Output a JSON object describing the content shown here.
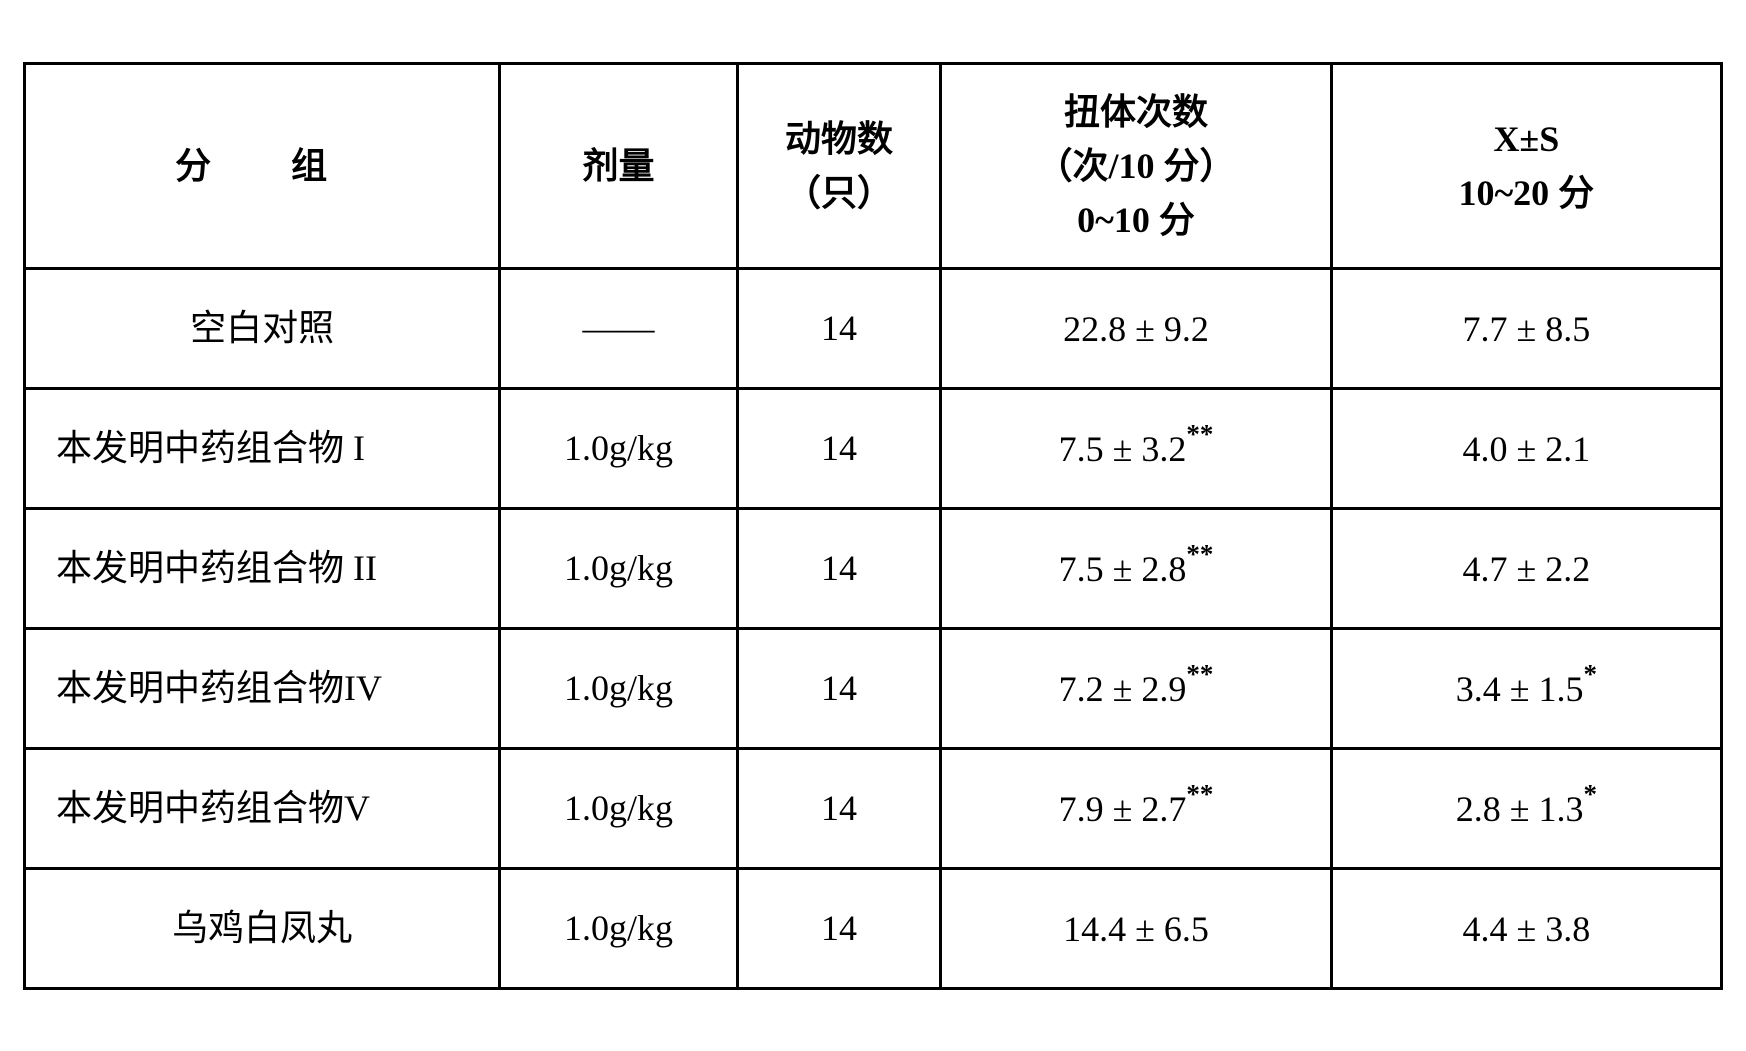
{
  "table": {
    "type": "table",
    "border_color": "#000000",
    "background_color": "#ffffff",
    "text_color": "#000000",
    "header_fontsize": 36,
    "cell_fontsize": 36,
    "header_fontweight": "bold",
    "columns": [
      {
        "key": "group",
        "label": "分　组",
        "width": "28%",
        "align": "center"
      },
      {
        "key": "dose",
        "label": "剂量",
        "width": "14%",
        "align": "center"
      },
      {
        "key": "animals",
        "label_line1": "动物数",
        "label_line2": "（只）",
        "width": "12%",
        "align": "center"
      },
      {
        "key": "twist1",
        "label_line1": "扭体次数",
        "label_line2": "（次/10 分）",
        "label_line3": "0~10 分",
        "width": "23%",
        "align": "center"
      },
      {
        "key": "twist2",
        "label_line1": "X±S",
        "label_line2": "10~20 分",
        "width": "23%",
        "align": "center"
      }
    ],
    "rows": [
      {
        "group": "空白对照",
        "group_align": "center",
        "dose": "——",
        "animals": "14",
        "twist1": "22.8 ± 9.2",
        "twist1_sup": "",
        "twist2": "7.7 ± 8.5",
        "twist2_sup": ""
      },
      {
        "group": "本发明中药组合物 I",
        "group_align": "left",
        "dose": "1.0g/kg",
        "animals": "14",
        "twist1": "7.5 ± 3.2",
        "twist1_sup": "**",
        "twist2": "4.0 ± 2.1",
        "twist2_sup": ""
      },
      {
        "group": "本发明中药组合物 II",
        "group_align": "left",
        "dose": "1.0g/kg",
        "animals": "14",
        "twist1": "7.5 ± 2.8",
        "twist1_sup": "**",
        "twist2": "4.7 ± 2.2",
        "twist2_sup": ""
      },
      {
        "group": "本发明中药组合物IV",
        "group_align": "left",
        "dose": "1.0g/kg",
        "animals": "14",
        "twist1": "7.2 ± 2.9",
        "twist1_sup": "**",
        "twist2": "3.4 ± 1.5",
        "twist2_sup": "*"
      },
      {
        "group": "本发明中药组合物V",
        "group_align": "left",
        "dose": "1.0g/kg",
        "animals": "14",
        "twist1": "7.9 ± 2.7",
        "twist1_sup": "**",
        "twist2": "2.8 ± 1.3",
        "twist2_sup": "*"
      },
      {
        "group": "乌鸡白凤丸",
        "group_align": "center",
        "dose": "1.0g/kg",
        "animals": "14",
        "twist1": "14.4 ± 6.5",
        "twist1_sup": "",
        "twist2": "4.4 ± 3.8",
        "twist2_sup": ""
      }
    ]
  }
}
